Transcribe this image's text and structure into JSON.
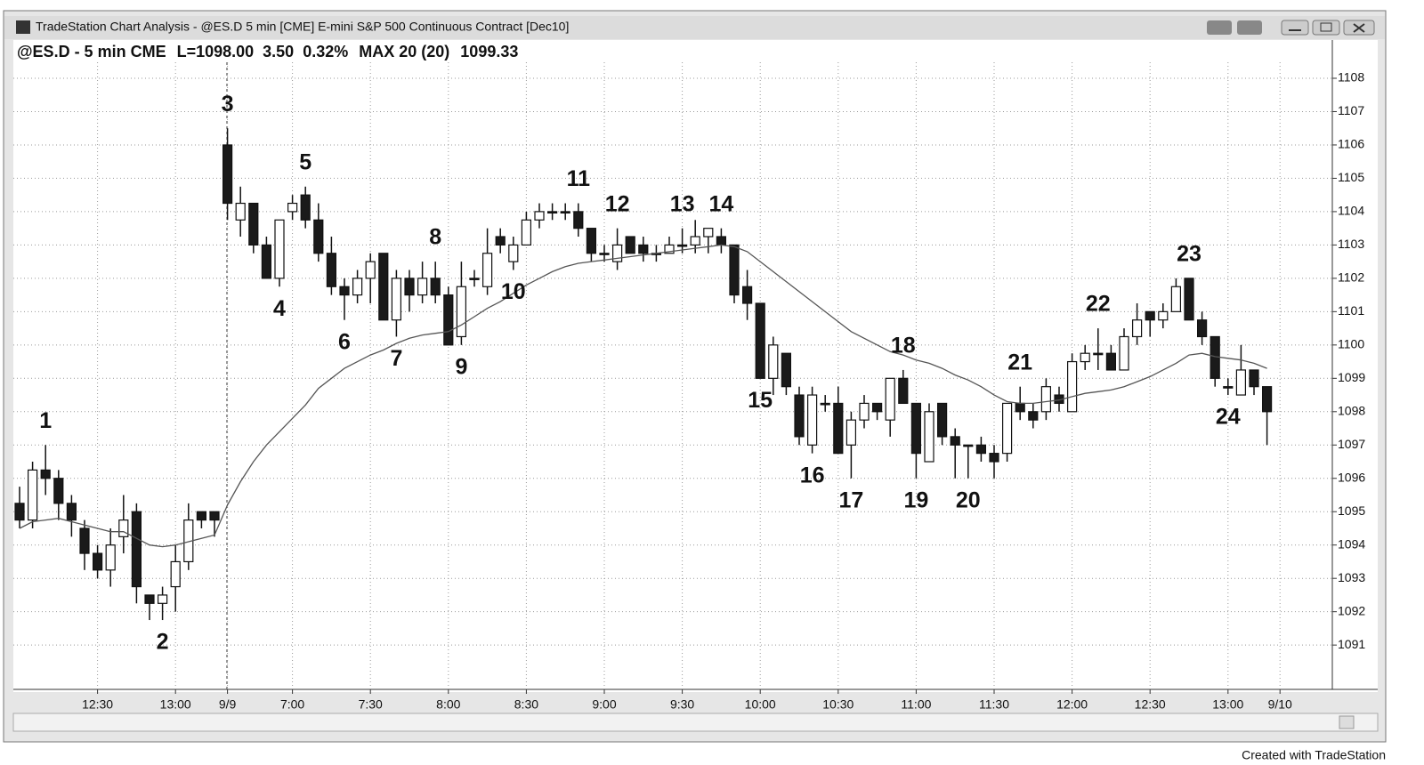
{
  "window": {
    "title": "TradeStation Chart Analysis - @ES.D 5 min  [CME] E-mini S&P 500 Continuous Contract [Dec10]"
  },
  "status_line": {
    "symbol": "@ES.D - 5 min CME",
    "last": "L=1098.00",
    "change": "3.50",
    "change_pct": "0.32%",
    "indicator": "MAX 20 (20)",
    "indicator_value": "1099.33"
  },
  "footer": "Created with TradeStation",
  "chart_data": {
    "type": "candlestick",
    "categories": [
      null,
      null,
      null,
      null,
      null,
      null,
      "12:30",
      null,
      null,
      null,
      null,
      null,
      "13:00",
      null,
      null,
      null,
      "9/9",
      null,
      null,
      null,
      null,
      "7:00",
      null,
      null,
      null,
      null,
      null,
      "7:30",
      null,
      null,
      null,
      null,
      null,
      "8:00",
      null,
      null,
      null,
      null,
      null,
      "8:30",
      null,
      null,
      null,
      null,
      null,
      "9:00",
      null,
      null,
      null,
      null,
      null,
      "9:30",
      null,
      null,
      null,
      null,
      null,
      "10:00",
      null,
      null,
      null,
      null,
      null,
      "10:30",
      null,
      null,
      null,
      null,
      null,
      "11:00",
      null,
      null,
      null,
      null,
      null,
      "11:30",
      null,
      null,
      null,
      null,
      null,
      "12:00",
      null,
      null,
      null,
      null,
      null,
      "12:30",
      null,
      null,
      null,
      null,
      null,
      "13:00",
      null,
      null,
      null,
      "9/10"
    ],
    "open": [
      1095.25,
      1094.75,
      1096.25,
      1096,
      1095.25,
      1094.5,
      1093.75,
      1093.25,
      1094.25,
      1095,
      1092.5,
      1092.25,
      1092.75,
      1093.5,
      1095,
      1095,
      1106,
      1103.75,
      1104.25,
      1103,
      1102,
      1104,
      1104.5,
      1103.75,
      1102.75,
      1101.75,
      1101.5,
      1102,
      1102.75,
      1100.75,
      1102,
      1101.5,
      1102,
      1101.5,
      1100.25,
      1102,
      1101.75,
      1103.25,
      1102.5,
      1103,
      1103.75,
      1104,
      1104,
      1104,
      1103.5,
      1102.75,
      1102.5,
      1103.25,
      1103,
      1102.75,
      1102.75,
      1103,
      1103,
      1103.25,
      1103.25,
      1103,
      1101.75,
      1101.25,
      1099,
      1099.75,
      1098.5,
      1097,
      1098.25,
      1098.25,
      1097,
      1097.75,
      1098.25,
      1097.75,
      1099,
      1098.25,
      1096.5,
      1098.25,
      1097.25,
      1097,
      1097,
      1096.75,
      1096.75,
      1098.25,
      1098,
      1098,
      1098.5,
      1098,
      1099.5,
      1099.75,
      1099.75,
      1099.25,
      1100.25,
      1101,
      1100.75,
      1101,
      1102,
      1100.75,
      1100.25,
      1098.75,
      1098.5,
      1099.25,
      1098.75,
      null
    ],
    "high": [
      1095.75,
      1096.5,
      1097,
      1096.25,
      1095.5,
      1094.75,
      1094,
      1094.5,
      1095.5,
      1095.25,
      1092.5,
      1092.75,
      1094,
      1095.25,
      1095,
      1095,
      1106.5,
      1104.75,
      1104.25,
      1103.25,
      1103.75,
      1104.5,
      1104.75,
      1104.25,
      1103.25,
      1102,
      1102.25,
      1102.75,
      1102.75,
      1102.25,
      1102.25,
      1102.5,
      1102.5,
      1101.75,
      1102.5,
      1102.25,
      1103.5,
      1103.5,
      1103.25,
      1104,
      1104.25,
      1104.25,
      1104.25,
      1104.25,
      1103.5,
      1103,
      1103.5,
      1103.25,
      1103.25,
      1103,
      1103.25,
      1103.5,
      1103.75,
      1103.5,
      1103.5,
      1103,
      1102.25,
      1101.25,
      1100.25,
      1099.75,
      1098.75,
      1098.75,
      1098.5,
      1098.75,
      1098,
      1098.5,
      1098.25,
      1099,
      1099.25,
      1098.25,
      1098.25,
      1098.25,
      1097.5,
      1097,
      1097.25,
      1097,
      1098.25,
      1098.75,
      1098.25,
      1099,
      1098.75,
      1099.75,
      1100,
      1100.5,
      1100,
      1100.5,
      1101.25,
      1101,
      1101.25,
      1102,
      1102,
      1101,
      1100.25,
      1099,
      1100,
      1099.25,
      1098.75,
      null
    ],
    "low": [
      1094.5,
      1094.5,
      1095.5,
      1094.75,
      1094.25,
      1093.25,
      1093,
      1092.75,
      1093.75,
      1092.25,
      1091.75,
      1091.75,
      1092,
      1093.25,
      1094.5,
      1094.25,
      1103.75,
      1103.25,
      1102.75,
      1102,
      1101.75,
      1103.75,
      1103.5,
      1102.5,
      1101.5,
      1100.75,
      1101.25,
      1101.25,
      1100.75,
      1100.25,
      1101,
      1101.25,
      1101.25,
      1100,
      1100,
      1101.75,
      1101.5,
      1102.75,
      1102.25,
      1103,
      1103.5,
      1103.75,
      1103.75,
      1103.25,
      1102.5,
      1102.5,
      1102.25,
      1102.75,
      1102.5,
      1102.5,
      1102.75,
      1102.75,
      1102.75,
      1102.75,
      1102.75,
      1101.25,
      1100.75,
      1099,
      1098.5,
      1098.5,
      1097,
      1096.75,
      1098,
      1096.75,
      1096,
      1097.5,
      1097.75,
      1097.25,
      1098.25,
      1096,
      1096.5,
      1097,
      1096,
      1096,
      1096.5,
      1096,
      1096.5,
      1097.75,
      1097.5,
      1097.75,
      1098,
      1098,
      1099.25,
      1099.25,
      1099.25,
      1099.25,
      1100,
      1100.25,
      1100.5,
      1101,
      1100.75,
      1100,
      1098.75,
      1098.5,
      1098.5,
      1098.5,
      1097,
      null
    ],
    "close": [
      1094.75,
      1096.25,
      1096,
      1095.25,
      1094.75,
      1093.75,
      1093.25,
      1094,
      1094.75,
      1092.75,
      1092.25,
      1092.5,
      1093.5,
      1094.75,
      1094.75,
      1094.75,
      1104.25,
      1104.25,
      1103,
      1102,
      1103.75,
      1104.25,
      1103.75,
      1102.75,
      1101.75,
      1101.5,
      1102,
      1102.5,
      1100.75,
      1102,
      1101.5,
      1102,
      1101.5,
      1100,
      1101.75,
      1102,
      1102.75,
      1103,
      1103,
      1103.75,
      1104,
      1104,
      1104,
      1103.5,
      1102.75,
      1102.75,
      1103,
      1102.75,
      1102.75,
      1102.75,
      1103,
      1103,
      1103.25,
      1103.5,
      1103,
      1101.5,
      1101.25,
      1099,
      1100,
      1098.75,
      1097.25,
      1098.5,
      1098.25,
      1096.75,
      1097.75,
      1098.25,
      1098,
      1099,
      1098.25,
      1096.75,
      1098,
      1097.25,
      1097,
      1097,
      1096.75,
      1096.5,
      1098.25,
      1098,
      1097.75,
      1098.75,
      1098.25,
      1099.5,
      1099.75,
      1099.75,
      1099.25,
      1100.25,
      1100.75,
      1100.75,
      1101,
      1101.75,
      1100.75,
      1100.25,
      1099,
      1098.75,
      1099.25,
      1098.75,
      1098,
      null
    ],
    "up_color": "#ffffff",
    "down_color": "#1a1a1a",
    "moving_average": {
      "color": "#555555",
      "values": [
        1094.5,
        1094.7,
        1094.75,
        1094.8,
        1094.7,
        1094.6,
        1094.5,
        1094.4,
        1094.4,
        1094.2,
        1094,
        1093.95,
        1094,
        1094.1,
        1094.2,
        1094.3,
        1095.2,
        1095.9,
        1096.5,
        1097,
        1097.4,
        1097.8,
        1098.2,
        1098.7,
        1099,
        1099.3,
        1099.5,
        1099.7,
        1099.85,
        1100.05,
        1100.2,
        1100.3,
        1100.35,
        1100.4,
        1100.6,
        1100.85,
        1101.1,
        1101.3,
        1101.55,
        1101.8,
        1102,
        1102.2,
        1102.35,
        1102.45,
        1102.5,
        1102.55,
        1102.6,
        1102.65,
        1102.7,
        1102.75,
        1102.8,
        1102.85,
        1102.9,
        1102.95,
        1103,
        1102.95,
        1102.8,
        1102.5,
        1102.2,
        1101.9,
        1101.6,
        1101.3,
        1101,
        1100.7,
        1100.4,
        1100.2,
        1100,
        1099.8,
        1099.7,
        1099.55,
        1099.45,
        1099.3,
        1099.1,
        1098.95,
        1098.75,
        1098.5,
        1098.3,
        1098.25,
        1098.25,
        1098.3,
        1098.35,
        1098.45,
        1098.55,
        1098.6,
        1098.65,
        1098.75,
        1098.9,
        1099.05,
        1099.25,
        1099.45,
        1099.7,
        1099.75,
        1099.65,
        1099.6,
        1099.55,
        1099.45,
        1099.3,
        null
      ]
    },
    "annotations": [
      "1",
      "2",
      "3",
      "4",
      "5",
      "6",
      "7",
      "8",
      "9",
      "10",
      "11",
      "12",
      "13",
      "14",
      "15",
      "16",
      "17",
      "18",
      "19",
      "20",
      "21",
      "22",
      "23",
      "24"
    ],
    "ylim": [
      1089.67,
      1108.48
    ],
    "yticks": [
      1091,
      1092,
      1093,
      1094,
      1095,
      1096,
      1097,
      1098,
      1099,
      1100,
      1101,
      1102,
      1103,
      1104,
      1105,
      1106,
      1107,
      1108
    ],
    "grid": true
  }
}
